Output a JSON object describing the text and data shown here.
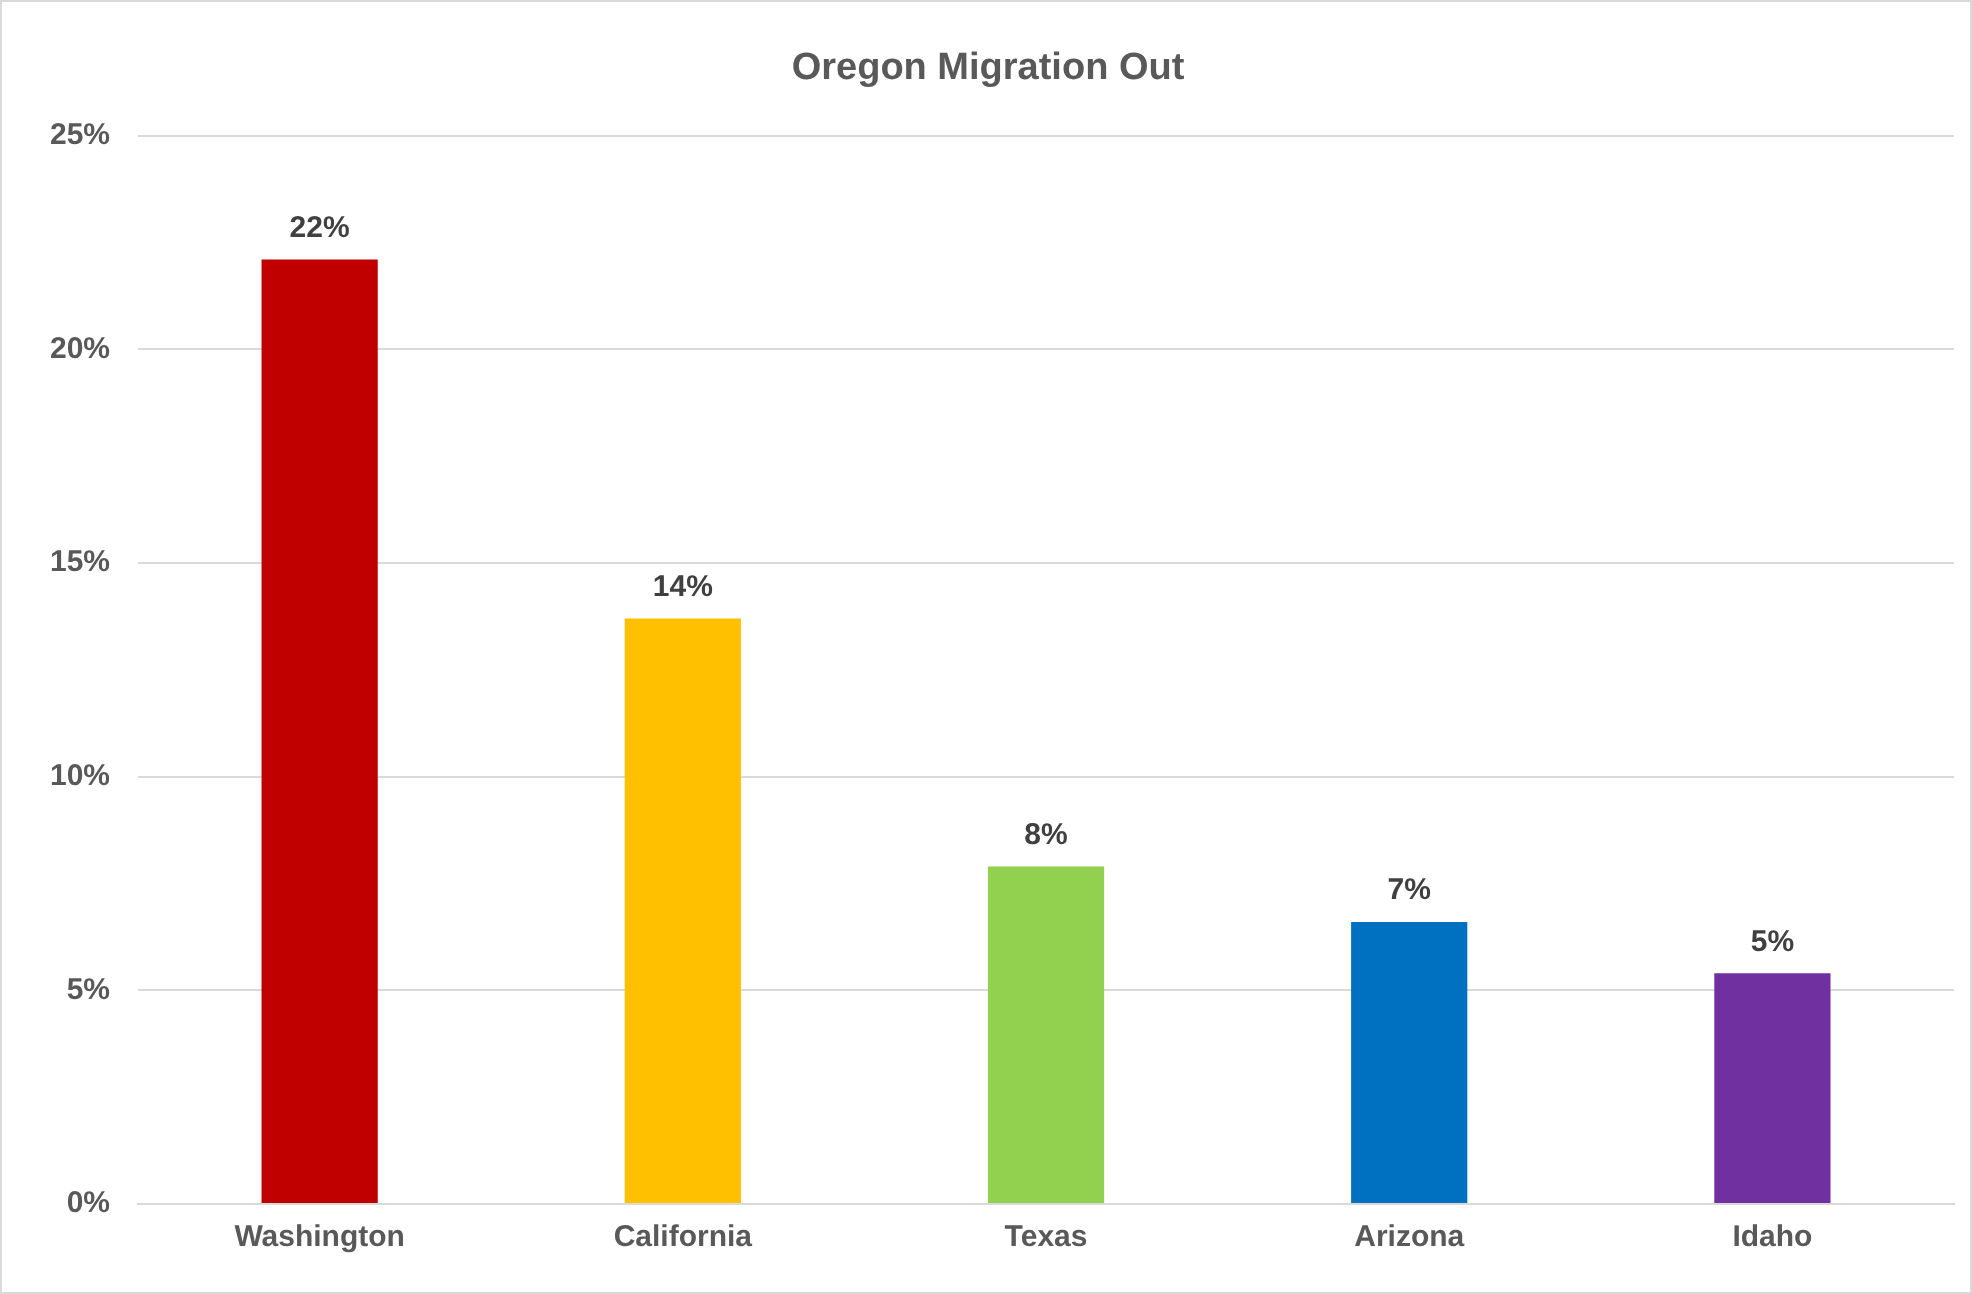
{
  "chart_data": {
    "type": "bar",
    "title": "Oregon Migration Out",
    "categories": [
      "Washington",
      "California",
      "Texas",
      "Arizona",
      "Idaho"
    ],
    "values": [
      22.1,
      13.7,
      7.9,
      6.6,
      5.4
    ],
    "colors": [
      "#c00000",
      "#ffc000",
      "#92d050",
      "#0070c0",
      "#7030a0"
    ],
    "value_labels": [
      "22%",
      "14%",
      "8%",
      "7%",
      "5%"
    ],
    "ylim": [
      0,
      25
    ],
    "yticks": [
      {
        "value": 0,
        "label": "0%"
      },
      {
        "value": 5,
        "label": "5%"
      },
      {
        "value": 10,
        "label": "10%"
      },
      {
        "value": 15,
        "label": "15%"
      },
      {
        "value": 20,
        "label": "20%"
      },
      {
        "value": 25,
        "label": "25%"
      }
    ],
    "grid": "y",
    "legend": false
  }
}
